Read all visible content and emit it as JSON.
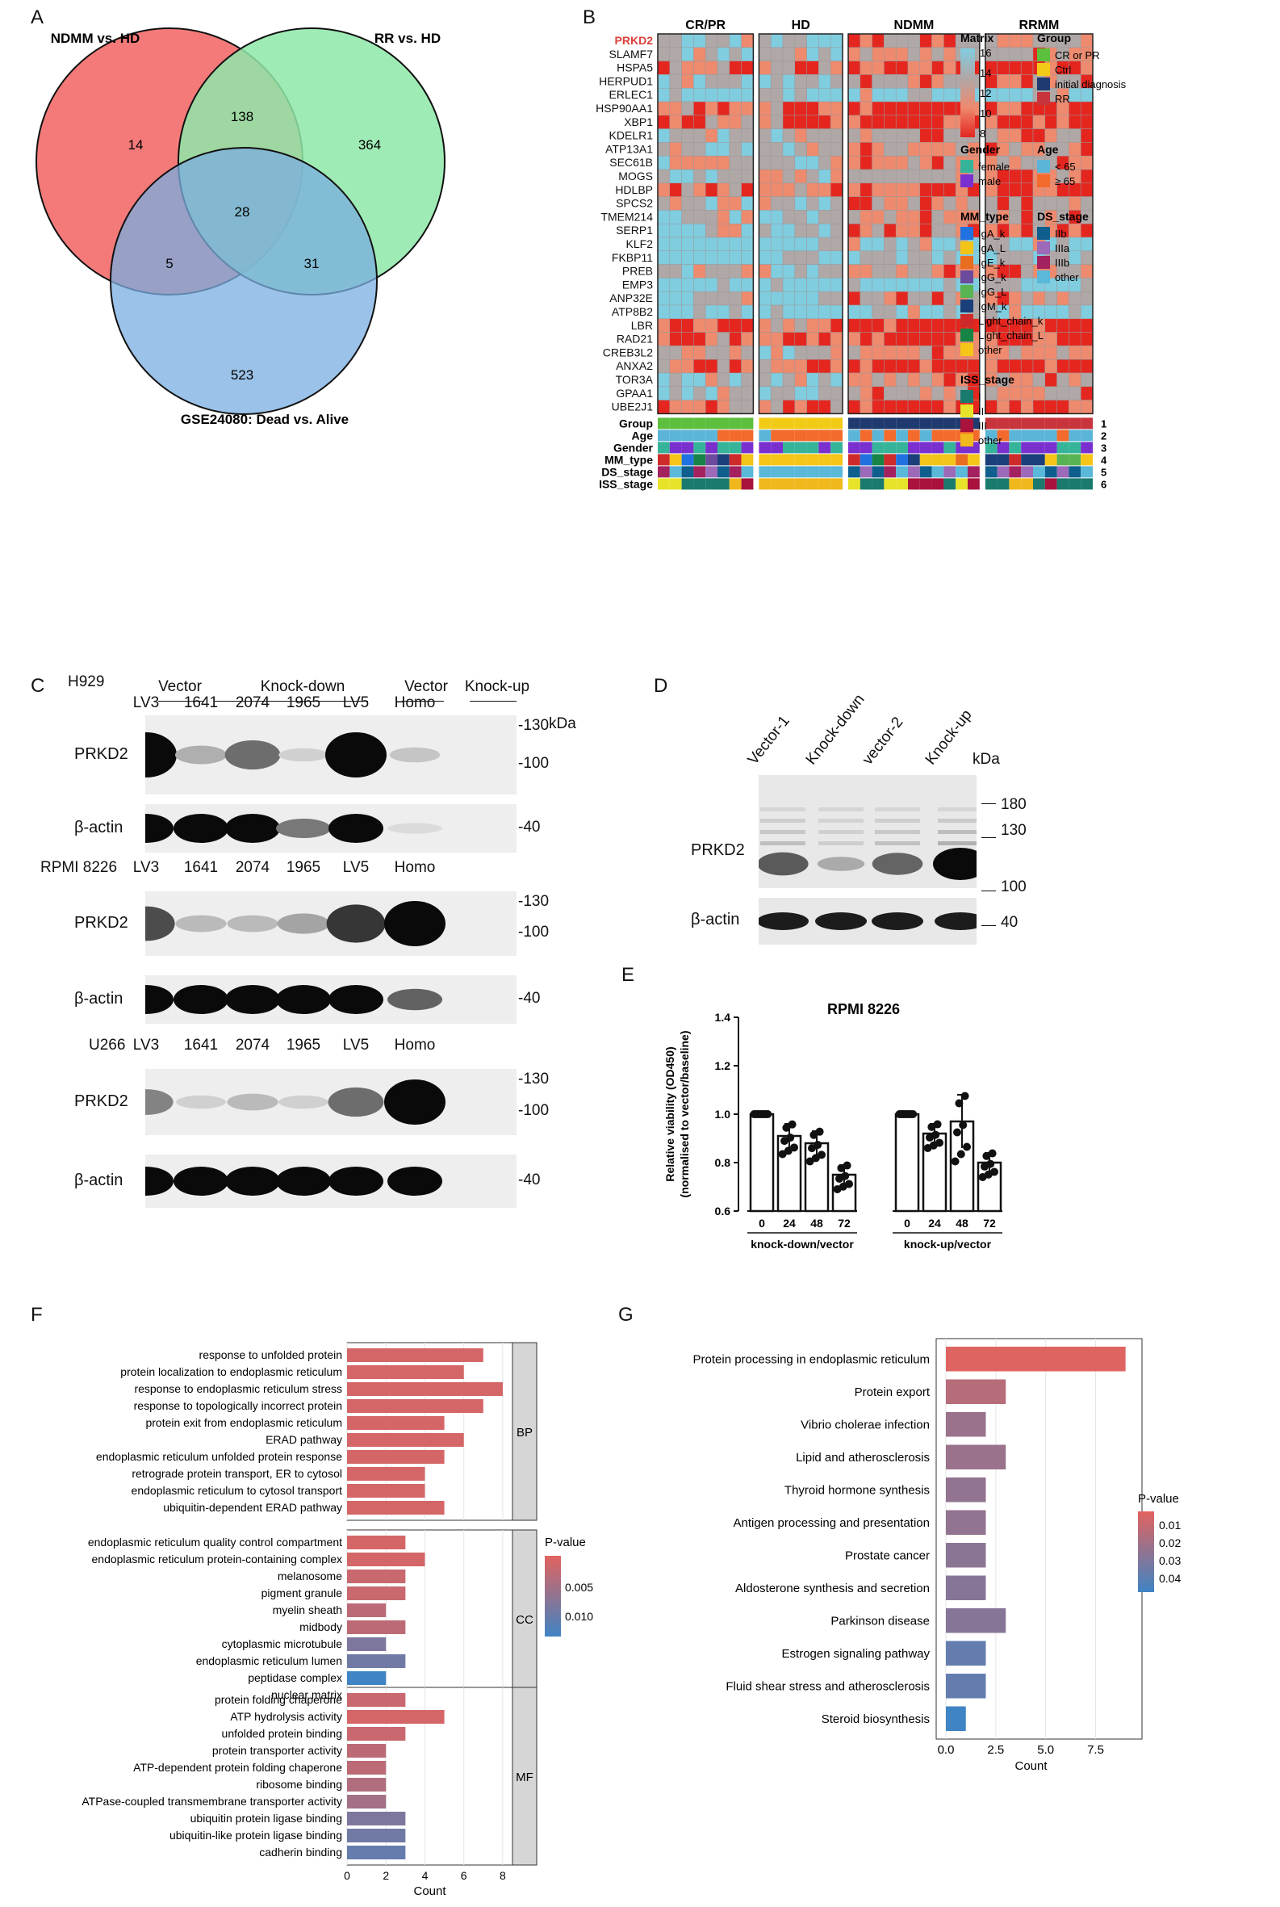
{
  "panels": {
    "A": "A",
    "B": "B",
    "C": "C",
    "D": "D",
    "E": "E",
    "F": "F",
    "G": "G"
  },
  "venn": {
    "set1": "NDMM vs. HD",
    "set2": "RR vs. HD",
    "set3": "GSE24080: Dead vs. Alive",
    "only1": "14",
    "only2": "364",
    "only3": "523",
    "s12": "138",
    "s13": "5",
    "s23": "31",
    "s123": "28",
    "colors": {
      "set1": "#f47a7a",
      "set2": "#8ee8a8",
      "set3": "#7aaee0"
    }
  },
  "heatmap": {
    "groups": [
      "CR/PR",
      "HD",
      "NDMM",
      "RRMM"
    ],
    "group_sizes": [
      8,
      7,
      11,
      9
    ],
    "genes": [
      "PRKD2",
      "SLAMF7",
      "HSPA5",
      "HERPUD1",
      "ERLEC1",
      "HSP90AA1",
      "XBP1",
      "KDELR1",
      "ATP13A1",
      "SEC61B",
      "MOGS",
      "HDLBP",
      "SPCS2",
      "TMEM214",
      "SERP1",
      "KLF2",
      "FKBP11",
      "PREB",
      "EMP3",
      "ANP32E",
      "ATP8B2",
      "LBR",
      "RAD21",
      "CREB3L2",
      "ANXA2",
      "TOR3A",
      "GPAA1",
      "UBE2J1"
    ],
    "highlight_gene": "PRKD2",
    "highlight_color": "#d9413a",
    "annotation_rows": [
      "Group",
      "Age",
      "Gender",
      "MM_type",
      "DS_stage",
      "ISS_stage"
    ],
    "annotation_numbers": [
      "1",
      "2",
      "3",
      "4",
      "5",
      "6"
    ],
    "matrix_legend": {
      "title": "Matrix",
      "ticks": [
        "16",
        "14",
        "12",
        "10",
        "8"
      ],
      "colors": [
        "#e4261f",
        "#ee8a6e",
        "#b0a7a7",
        "#80cde0"
      ]
    },
    "legends": {
      "Group": {
        "title": "Group",
        "items": [
          [
            "CR or PR",
            "#5cbf3d"
          ],
          [
            "Ctrl",
            "#f2cb17"
          ],
          [
            "initial diagnosis",
            "#1f3a6e"
          ],
          [
            "RR",
            "#c8343b"
          ]
        ]
      },
      "Age": {
        "title": "Age",
        "items": [
          [
            "< 65",
            "#5bb5d8"
          ],
          [
            "≥ 65",
            "#f36b2c"
          ]
        ]
      },
      "Gender": {
        "title": "Gender",
        "items": [
          [
            "female",
            "#36b49a"
          ],
          [
            "male",
            "#7a2fcf"
          ]
        ]
      },
      "MM_type": {
        "title": "MM_type",
        "items": [
          [
            "IgA_k",
            "#2072e0"
          ],
          [
            "IgA_L",
            "#f2c418"
          ],
          [
            "IgE_k",
            "#e86d1f"
          ],
          [
            "IgG_k",
            "#6c4a9c"
          ],
          [
            "IgG_L",
            "#58b452"
          ],
          [
            "IgM_k",
            "#1b3f7a"
          ],
          [
            "Light_chain_k",
            "#cf2a2a"
          ],
          [
            "Light_chain_L",
            "#168445"
          ],
          [
            "other",
            "#f5c518"
          ]
        ]
      },
      "DS_stage": {
        "title": "DS_stage",
        "items": [
          [
            "IIb",
            "#0e5f8e"
          ],
          [
            "IIIa",
            "#9c6ab8"
          ],
          [
            "IIIb",
            "#a3215f"
          ],
          [
            "other",
            "#5ab8d9"
          ]
        ]
      },
      "ISS_stage": {
        "title": "ISS_stage",
        "items": [
          [
            "I",
            "#1a7a6e"
          ],
          [
            "II",
            "#e7e32a"
          ],
          [
            "III",
            "#a8123d"
          ],
          [
            "other",
            "#f0b81c"
          ]
        ]
      }
    }
  },
  "blots": {
    "header": {
      "vector": "Vector",
      "knockdown": "Knock-down",
      "vector2": "Vector",
      "knockup": "Knock-up",
      "kda": "kDa"
    },
    "cells": [
      {
        "name": "H929",
        "lanes": [
          "LV3",
          "1641",
          "2074",
          "1965",
          "LV5",
          "Homo"
        ],
        "prkd2": [
          1.0,
          0.25,
          0.55,
          0.1,
          1.0,
          0.15
        ],
        "actin": [
          1.0,
          1.0,
          1.0,
          0.5,
          1.0,
          0.05
        ]
      },
      {
        "name": "RPMI 8226",
        "lanes": [
          "LV3",
          "1641",
          "2074",
          "1965",
          "LV5",
          "Homo"
        ],
        "prkd2": [
          0.7,
          0.2,
          0.2,
          0.3,
          0.8,
          1.0
        ],
        "actin": [
          1.0,
          1.0,
          1.0,
          1.0,
          1.0,
          0.6
        ]
      },
      {
        "name": "U266",
        "lanes": [
          "LV3",
          "1641",
          "2074",
          "1965",
          "LV5",
          "Homo"
        ],
        "prkd2": [
          0.45,
          0.1,
          0.2,
          0.1,
          0.55,
          1.0
        ],
        "actin": [
          1.0,
          1.0,
          1.0,
          1.0,
          1.0,
          1.0
        ]
      }
    ],
    "protein": "PRKD2",
    "actin": "β-actin",
    "markers_c": [
      "-130",
      "-100",
      "-40"
    ]
  },
  "panel_d": {
    "lanes": [
      "Vector-1",
      "Knock-down",
      "vector-2",
      "Knock-up"
    ],
    "protein": "PRKD2",
    "actin": "β-actin",
    "kda": "kDa",
    "markers": [
      "180",
      "130",
      "100",
      "40"
    ],
    "prkd2": [
      0.6,
      0.2,
      0.55,
      1.0
    ]
  },
  "chart_data": [
    {
      "type": "bar",
      "title": "RPMI 8226",
      "ylabel": "Relative viability (OD450) (normalised to vector/baseline)",
      "ylim": [
        0.6,
        1.4
      ],
      "yticks": [
        "0.6",
        "0.8",
        "1.0",
        "1.2",
        "1.4"
      ],
      "groups": [
        {
          "name": "knock-down/vector",
          "categories": [
            "0",
            "24",
            "48",
            "72"
          ],
          "values": [
            1.0,
            0.91,
            0.88,
            0.75
          ],
          "errors": [
            0.01,
            0.05,
            0.05,
            0.04
          ]
        },
        {
          "name": "knock-up/vector",
          "categories": [
            "0",
            "24",
            "48",
            "72"
          ],
          "values": [
            1.0,
            0.92,
            0.97,
            0.8
          ],
          "errors": [
            0.01,
            0.04,
            0.11,
            0.04
          ]
        }
      ]
    },
    {
      "type": "bar",
      "orientation": "horizontal",
      "xlabel": "Count",
      "xticks": [
        "0",
        "2",
        "4",
        "6",
        "8"
      ],
      "legend_title": "P-value",
      "legend_ticks": [
        "0.005",
        "0.010"
      ],
      "facets": [
        {
          "name": "BP",
          "categories": [
            "response to unfolded protein",
            "protein localization to endoplasmic reticulum",
            "response to endoplasmic reticulum stress",
            "response to topologically incorrect protein",
            "protein exit from endoplasmic reticulum",
            "ERAD pathway",
            "endoplasmic reticulum unfolded protein response",
            "retrograde protein transport, ER to cytosol",
            "endoplasmic reticulum to cytosol transport",
            "ubiquitin-dependent ERAD pathway"
          ],
          "values": [
            7,
            6,
            8,
            7,
            5,
            6,
            5,
            4,
            4,
            5
          ],
          "pvalue": [
            0.001,
            0.001,
            0.001,
            0.001,
            0.001,
            0.001,
            0.001,
            0.001,
            0.001,
            0.001
          ]
        },
        {
          "name": "CC",
          "categories": [
            "endoplasmic reticulum quality control compartment",
            "endoplasmic reticulum protein-containing complex",
            "melanosome",
            "pigment granule",
            "myelin sheath",
            "midbody",
            "cytoplasmic microtubule",
            "endoplasmic reticulum lumen",
            "peptidase complex",
            "nuclear matrix"
          ],
          "values": [
            3,
            4,
            3,
            3,
            2,
            3,
            2,
            3,
            2,
            2
          ],
          "pvalue": [
            0.001,
            0.001,
            0.002,
            0.002,
            0.003,
            0.003,
            0.008,
            0.009,
            0.013,
            0.013
          ]
        },
        {
          "name": "MF",
          "categories": [
            "protein folding chaperone",
            "ATP hydrolysis activity",
            "unfolded protein binding",
            "protein transporter activity",
            "ATP-dependent protein folding chaperone",
            "ribosome binding",
            "ATPase-coupled transmembrane transporter activity",
            "ubiquitin protein ligase binding",
            "ubiquitin-like protein ligase binding",
            "cadherin binding"
          ],
          "values": [
            3,
            5,
            3,
            2,
            2,
            2,
            2,
            3,
            3,
            3
          ],
          "pvalue": [
            0.002,
            0.001,
            0.002,
            0.003,
            0.003,
            0.004,
            0.005,
            0.008,
            0.009,
            0.01
          ]
        }
      ]
    },
    {
      "type": "bar",
      "orientation": "horizontal",
      "xlabel": "Count",
      "xticks": [
        "0.0",
        "2.5",
        "5.0",
        "7.5"
      ],
      "legend_title": "P-value",
      "legend_ticks": [
        "0.01",
        "0.02",
        "0.03",
        "0.04"
      ],
      "categories": [
        "Protein processing in endoplasmic reticulum",
        "Protein export",
        "Vibrio cholerae infection",
        "Lipid and atherosclerosis",
        "Thyroid hormone synthesis",
        "Antigen processing and presentation",
        "Prostate cancer",
        "Aldosterone synthesis and secretion",
        "Parkinson disease",
        "Estrogen signaling pathway",
        "Fluid shear stress and atherosclerosis",
        "Steroid biosynthesis"
      ],
      "values": [
        9,
        3,
        2,
        3,
        2,
        2,
        2,
        2,
        3,
        2,
        2,
        1
      ],
      "pvalue": [
        0.001,
        0.012,
        0.02,
        0.02,
        0.022,
        0.022,
        0.024,
        0.025,
        0.025,
        0.035,
        0.035,
        0.045
      ]
    }
  ]
}
